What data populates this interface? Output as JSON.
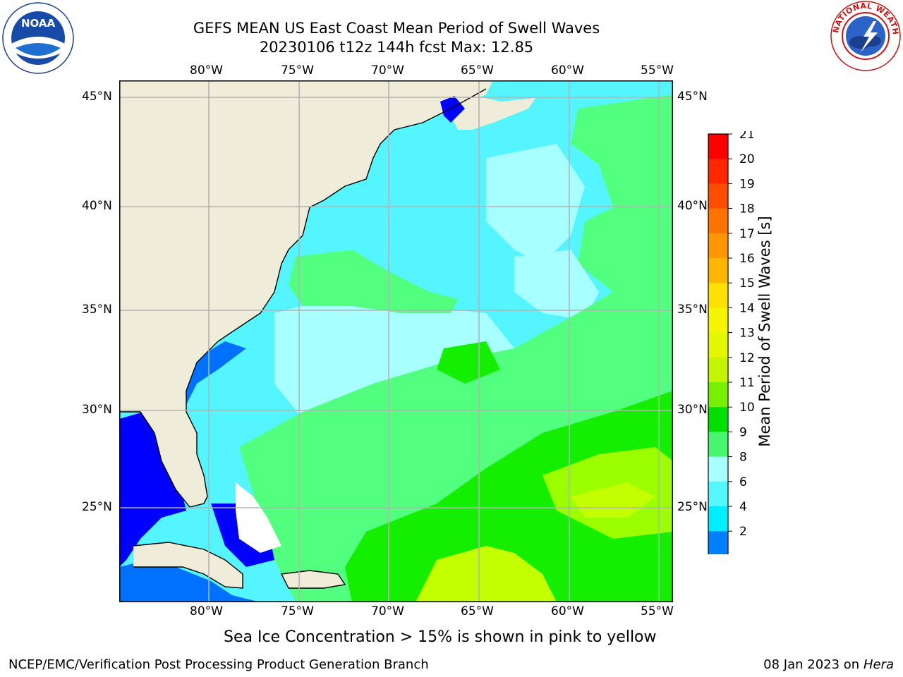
{
  "header": {
    "title_line1": "GEFS MEAN US East Coast Mean Period of Swell Waves",
    "title_line2": "20230106 t12z 144h fcst   Max: 12.85"
  },
  "logos": {
    "left_text": "NOAA",
    "right_text": "NATIONAL WEATHER SERVICE"
  },
  "map": {
    "lon_labels": [
      "80°W",
      "75°W",
      "70°W",
      "65°W",
      "60°W",
      "55°W"
    ],
    "lat_labels": [
      "45°N",
      "40°N",
      "35°N",
      "30°N",
      "25°N"
    ],
    "colors": {
      "land": "#efecd9",
      "sea_cyan": "#55f5ff",
      "sea_light": "#a7ffff",
      "sea_green": "#52ff7e",
      "sea_mid_green": "#14ee00",
      "sea_yellow_green": "#c3ff00",
      "blue": "#0000ff",
      "mid_blue": "#0070ff",
      "ice": "#ffffff",
      "grid": "#b3b3b3"
    }
  },
  "colorbar": {
    "label": "Mean Period of Swell Waves [s]",
    "ticks": [
      "21",
      "20",
      "19",
      "18",
      "17",
      "16",
      "15",
      "14",
      "13",
      "12",
      "11",
      "10",
      "9",
      "8",
      "6",
      "4",
      "2"
    ],
    "colors_top_to_bottom": [
      "#ff0000",
      "#ff2600",
      "#ff4d00",
      "#ff7300",
      "#ff9500",
      "#ffb600",
      "#ffe100",
      "#f5f500",
      "#e4f700",
      "#c4f500",
      "#76f000",
      "#00e000",
      "#49f56f",
      "#a8ffff",
      "#55f7ff",
      "#00edff",
      "#0080ff"
    ],
    "extend_color": "#0000ff"
  },
  "note": "Sea Ice Concentration > 15% is shown in pink to yellow",
  "footer": {
    "left": "NCEP/EMC/Verification Post Processing Product Generation Branch",
    "right_date": "08 Jan 2023 on ",
    "right_machine": "Hera"
  }
}
